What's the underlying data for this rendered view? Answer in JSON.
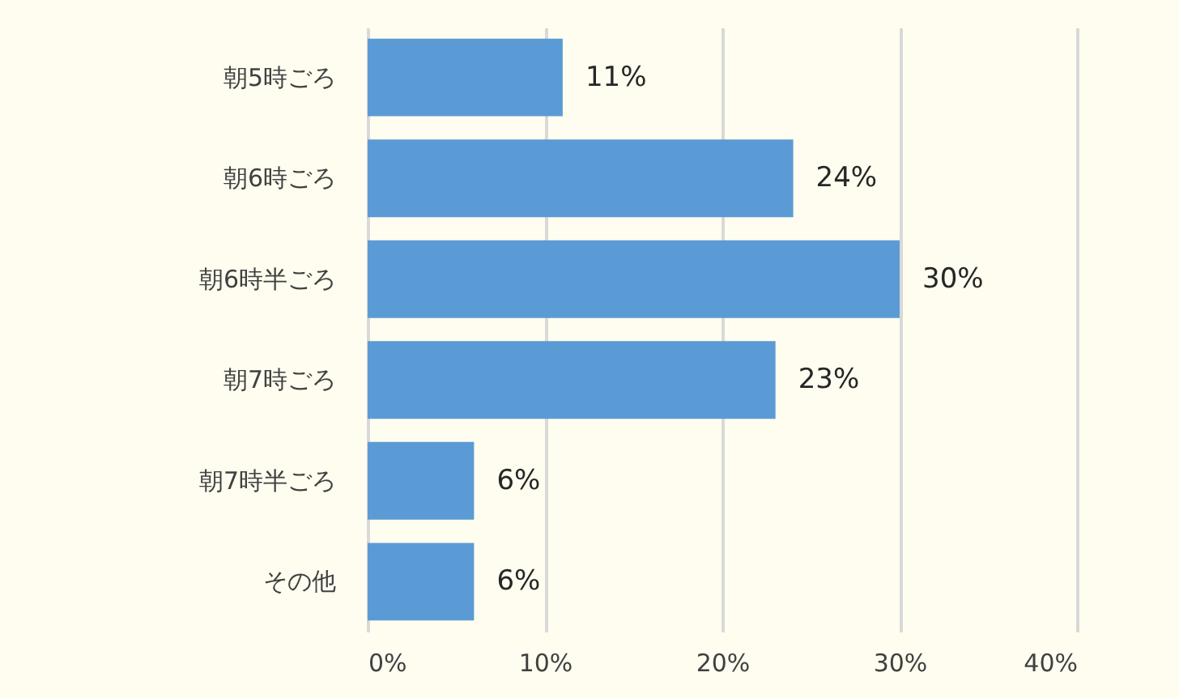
{
  "chart_data": {
    "type": "bar",
    "orientation": "horizontal",
    "categories": [
      "朝5時ごろ",
      "朝6時ごろ",
      "朝6時半ごろ",
      "朝7時ごろ",
      "朝7時半ごろ",
      "その他"
    ],
    "values": [
      11,
      24,
      30,
      23,
      6,
      6
    ],
    "value_labels": [
      "11%",
      "24%",
      "30%",
      "23%",
      "6%",
      "6%"
    ],
    "color": "#5b9bd5",
    "xlim": [
      0,
      40
    ],
    "xticks": [
      {
        "value": 0,
        "label": "0%"
      },
      {
        "value": 10,
        "label": "10%"
      },
      {
        "value": 20,
        "label": "20%"
      },
      {
        "value": 30,
        "label": "30%"
      },
      {
        "value": 40,
        "label": "40%"
      }
    ],
    "grid": "x"
  }
}
